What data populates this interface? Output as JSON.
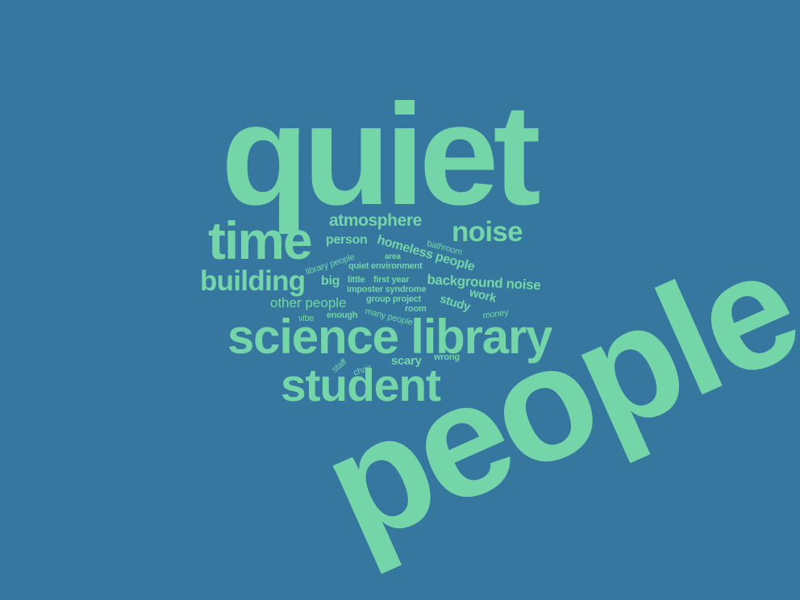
{
  "background_color": "#3677a0",
  "word_color": "#74d5a8",
  "words": {
    "quiet": "quiet",
    "people": "people",
    "time": "time",
    "science_library": "science library",
    "student": "student",
    "building": "building",
    "noise": "noise",
    "atmosphere": "atmosphere",
    "person": "person",
    "homeless_people": "homeless people",
    "bathroom": "bathroom",
    "library_people": "library people",
    "area": "area",
    "quiet_environment": "quiet environment",
    "big": "big",
    "little": "little",
    "first_year": "first year",
    "background_noise": "background noise",
    "imposter_syndrome": "imposter syndrome",
    "work": "work",
    "study": "study",
    "other_people": "other people",
    "group_project": "group project",
    "room": "room",
    "many_people": "many people",
    "money": "money",
    "vibe": "vibe",
    "enough": "enough",
    "scary": "scary",
    "wrong": "wrong",
    "staff": "staff",
    "chair": "chair"
  }
}
